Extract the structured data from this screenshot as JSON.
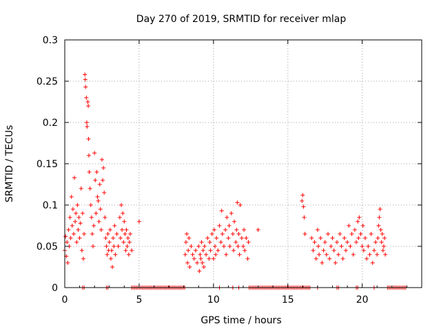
{
  "chart_data": {
    "type": "scatter",
    "title": "Day 270 of 2019, SRMTID for receiver mlap",
    "xlabel": "GPS time / hours",
    "ylabel": "SRMTID / TECUs",
    "xlim": [
      0,
      24
    ],
    "ylim": [
      0,
      0.3
    ],
    "xticks": [
      0,
      5,
      10,
      15,
      20
    ],
    "xtick_labels": [
      "0",
      "5",
      "10",
      "15",
      "20"
    ],
    "yticks": [
      0,
      0.05,
      0.1,
      0.15,
      0.2,
      0.25,
      0.3
    ],
    "ytick_labels": [
      "0",
      "0.05",
      "0.1",
      "0.15",
      "0.2",
      "0.25",
      "0.3"
    ],
    "grid": true,
    "marker": "+",
    "series_color": "#ff0000",
    "series": [
      {
        "name": "SRMTID",
        "points": [
          [
            0.0,
            0.045
          ],
          [
            0.05,
            0.062
          ],
          [
            0.1,
            0.038
          ],
          [
            0.15,
            0.055
          ],
          [
            0.2,
            0.03
          ],
          [
            0.25,
            0.07
          ],
          [
            0.3,
            0.05
          ],
          [
            0.35,
            0.085
          ],
          [
            0.4,
            0.06
          ],
          [
            0.45,
            0.11
          ],
          [
            0.5,
            0.075
          ],
          [
            0.55,
            0.095
          ],
          [
            0.6,
            0.065
          ],
          [
            0.65,
            0.133
          ],
          [
            0.7,
            0.08
          ],
          [
            0.75,
            0.09
          ],
          [
            0.8,
            0.055
          ],
          [
            0.85,
            0.1
          ],
          [
            0.9,
            0.07
          ],
          [
            0.95,
            0.085
          ],
          [
            1.0,
            0.06
          ],
          [
            1.05,
            0.078
          ],
          [
            1.1,
            0.12
          ],
          [
            1.15,
            0.045
          ],
          [
            1.2,
            0.09
          ],
          [
            1.25,
            0.035
          ],
          [
            1.3,
            0.065
          ],
          [
            1.35,
            0.258
          ],
          [
            1.38,
            0.252
          ],
          [
            1.4,
            0.243
          ],
          [
            1.45,
            0.23
          ],
          [
            1.48,
            0.2
          ],
          [
            1.5,
            0.195
          ],
          [
            1.55,
            0.225
          ],
          [
            1.58,
            0.22
          ],
          [
            1.6,
            0.18
          ],
          [
            1.62,
            0.16
          ],
          [
            1.65,
            0.14
          ],
          [
            1.7,
            0.12
          ],
          [
            1.75,
            0.1
          ],
          [
            1.8,
            0.085
          ],
          [
            1.85,
            0.065
          ],
          [
            1.9,
            0.05
          ],
          [
            1.95,
            0.075
          ],
          [
            2.0,
            0.163
          ],
          [
            2.05,
            0.13
          ],
          [
            2.1,
            0.09
          ],
          [
            2.15,
            0.14
          ],
          [
            2.2,
            0.11
          ],
          [
            2.25,
            0.105
          ],
          [
            2.3,
            0.08
          ],
          [
            2.35,
            0.125
          ],
          [
            2.4,
            0.095
          ],
          [
            2.45,
            0.07
          ],
          [
            2.5,
            0.155
          ],
          [
            2.55,
            0.13
          ],
          [
            2.6,
            0.145
          ],
          [
            2.65,
            0.115
          ],
          [
            2.7,
            0.085
          ],
          [
            2.75,
            0.06
          ],
          [
            2.8,
            0.05
          ],
          [
            2.85,
            0.04
          ],
          [
            2.9,
            0.065
          ],
          [
            2.95,
            0.045
          ],
          [
            3.0,
            0.055
          ],
          [
            3.05,
            0.07
          ],
          [
            3.1,
            0.035
          ],
          [
            3.15,
            0.045
          ],
          [
            3.2,
            0.025
          ],
          [
            3.25,
            0.06
          ],
          [
            3.3,
            0.05
          ],
          [
            3.35,
            0.075
          ],
          [
            3.4,
            0.04
          ],
          [
            3.5,
            0.065
          ],
          [
            3.6,
            0.05
          ],
          [
            3.7,
            0.085
          ],
          [
            3.75,
            0.06
          ],
          [
            3.8,
            0.1
          ],
          [
            3.85,
            0.07
          ],
          [
            3.9,
            0.09
          ],
          [
            3.95,
            0.055
          ],
          [
            4.0,
            0.08
          ],
          [
            4.05,
            0.065
          ],
          [
            4.1,
            0.045
          ],
          [
            4.15,
            0.07
          ],
          [
            4.2,
            0.05
          ],
          [
            4.25,
            0.06
          ],
          [
            4.3,
            0.04
          ],
          [
            4.35,
            0.055
          ],
          [
            4.4,
            0.065
          ],
          [
            4.5,
            0.045
          ],
          [
            5.0,
            0.08
          ],
          [
            8.1,
            0.04
          ],
          [
            8.15,
            0.055
          ],
          [
            8.2,
            0.065
          ],
          [
            8.25,
            0.03
          ],
          [
            8.3,
            0.045
          ],
          [
            8.35,
            0.06
          ],
          [
            8.4,
            0.025
          ],
          [
            8.5,
            0.05
          ],
          [
            8.6,
            0.04
          ],
          [
            8.7,
            0.035
          ],
          [
            8.8,
            0.045
          ],
          [
            8.9,
            0.03
          ],
          [
            9.0,
            0.05
          ],
          [
            9.05,
            0.02
          ],
          [
            9.1,
            0.04
          ],
          [
            9.15,
            0.035
          ],
          [
            9.2,
            0.055
          ],
          [
            9.25,
            0.03
          ],
          [
            9.3,
            0.045
          ],
          [
            9.35,
            0.025
          ],
          [
            9.4,
            0.05
          ],
          [
            9.5,
            0.04
          ],
          [
            9.6,
            0.06
          ],
          [
            9.7,
            0.035
          ],
          [
            9.75,
            0.055
          ],
          [
            9.8,
            0.045
          ],
          [
            9.9,
            0.065
          ],
          [
            10.0,
            0.035
          ],
          [
            10.05,
            0.07
          ],
          [
            10.1,
            0.05
          ],
          [
            10.15,
            0.04
          ],
          [
            10.2,
            0.06
          ],
          [
            10.3,
            0.045
          ],
          [
            10.4,
            0.075
          ],
          [
            10.5,
            0.055
          ],
          [
            10.55,
            0.093
          ],
          [
            10.6,
            0.065
          ],
          [
            10.7,
            0.05
          ],
          [
            10.8,
            0.07
          ],
          [
            10.85,
            0.04
          ],
          [
            10.9,
            0.085
          ],
          [
            11.0,
            0.06
          ],
          [
            11.05,
            0.075
          ],
          [
            11.1,
            0.05
          ],
          [
            11.2,
            0.09
          ],
          [
            11.3,
            0.065
          ],
          [
            11.35,
            0.045
          ],
          [
            11.4,
            0.08
          ],
          [
            11.5,
            0.055
          ],
          [
            11.55,
            0.07
          ],
          [
            11.6,
            0.103
          ],
          [
            11.65,
            0.05
          ],
          [
            11.7,
            0.065
          ],
          [
            11.75,
            0.04
          ],
          [
            11.8,
            0.1
          ],
          [
            11.9,
            0.06
          ],
          [
            12.0,
            0.05
          ],
          [
            12.05,
            0.07
          ],
          [
            12.1,
            0.045
          ],
          [
            12.2,
            0.06
          ],
          [
            12.3,
            0.035
          ],
          [
            12.35,
            0.055
          ],
          [
            13.0,
            0.07
          ],
          [
            15.95,
            0.105
          ],
          [
            16.0,
            0.112
          ],
          [
            16.05,
            0.098
          ],
          [
            16.1,
            0.085
          ],
          [
            16.15,
            0.065
          ],
          [
            16.6,
            0.06
          ],
          [
            16.7,
            0.045
          ],
          [
            16.8,
            0.055
          ],
          [
            16.9,
            0.035
          ],
          [
            17.0,
            0.07
          ],
          [
            17.05,
            0.05
          ],
          [
            17.1,
            0.04
          ],
          [
            17.2,
            0.06
          ],
          [
            17.3,
            0.03
          ],
          [
            17.4,
            0.045
          ],
          [
            17.5,
            0.055
          ],
          [
            17.6,
            0.04
          ],
          [
            17.7,
            0.065
          ],
          [
            17.8,
            0.035
          ],
          [
            17.9,
            0.05
          ],
          [
            18.0,
            0.06
          ],
          [
            18.1,
            0.045
          ],
          [
            18.2,
            0.03
          ],
          [
            18.3,
            0.055
          ],
          [
            18.4,
            0.04
          ],
          [
            18.5,
            0.065
          ],
          [
            18.6,
            0.05
          ],
          [
            18.7,
            0.035
          ],
          [
            18.8,
            0.06
          ],
          [
            18.9,
            0.045
          ],
          [
            19.0,
            0.055
          ],
          [
            19.1,
            0.075
          ],
          [
            19.2,
            0.05
          ],
          [
            19.3,
            0.065
          ],
          [
            19.4,
            0.04
          ],
          [
            19.5,
            0.07
          ],
          [
            19.6,
            0.055
          ],
          [
            19.7,
            0.08
          ],
          [
            19.75,
            0.06
          ],
          [
            19.8,
            0.085
          ],
          [
            19.9,
            0.065
          ],
          [
            20.0,
            0.05
          ],
          [
            20.05,
            0.075
          ],
          [
            20.1,
            0.045
          ],
          [
            20.2,
            0.06
          ],
          [
            20.3,
            0.035
          ],
          [
            20.4,
            0.05
          ],
          [
            20.5,
            0.04
          ],
          [
            20.6,
            0.065
          ],
          [
            20.7,
            0.03
          ],
          [
            20.8,
            0.045
          ],
          [
            20.9,
            0.055
          ],
          [
            21.0,
            0.04
          ],
          [
            21.05,
            0.06
          ],
          [
            21.1,
            0.075
          ],
          [
            21.15,
            0.085
          ],
          [
            21.2,
            0.095
          ],
          [
            21.25,
            0.07
          ],
          [
            21.3,
            0.055
          ],
          [
            21.35,
            0.065
          ],
          [
            21.4,
            0.045
          ],
          [
            21.45,
            0.05
          ],
          [
            21.5,
            0.06
          ],
          [
            21.55,
            0.04
          ]
        ]
      }
    ],
    "zero_segments": [
      [
        1.2,
        1.4
      ],
      [
        2.8,
        3.0
      ],
      [
        4.5,
        4.6
      ],
      [
        4.6,
        8.1
      ],
      [
        10.4,
        10.5
      ],
      [
        11.3,
        11.4
      ],
      [
        11.7,
        11.8
      ],
      [
        12.4,
        16.5
      ],
      [
        17.0,
        17.1
      ],
      [
        18.3,
        18.5
      ],
      [
        19.6,
        19.8
      ],
      [
        20.8,
        20.9
      ],
      [
        21.7,
        23.0
      ]
    ]
  }
}
